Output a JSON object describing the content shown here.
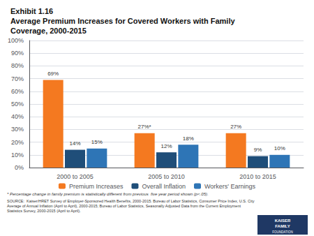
{
  "chart_data": {
    "type": "bar",
    "title": "Exhibit 1.16\nAverage Premium Increases for Covered Workers with Family\nCoverage, 2000-2015",
    "categories": [
      "2000 to 2005",
      "2005 to 2010",
      "2010 to 2015"
    ],
    "series": [
      {
        "name": "Premium Increases",
        "color": "#F47920",
        "values": [
          69,
          27,
          27
        ],
        "value_labels": [
          "69%",
          "27%*",
          "27%"
        ]
      },
      {
        "name": "Overall Inflation",
        "color": "#1F4E79",
        "values": [
          14,
          12,
          9
        ],
        "value_labels": [
          "14%",
          "12%",
          "9%"
        ]
      },
      {
        "name": "Workers' Earnings",
        "color": "#2E75B6",
        "values": [
          15,
          18,
          10
        ],
        "value_labels": [
          "15%",
          "18%",
          "10%"
        ]
      }
    ],
    "ylim": [
      0,
      100
    ],
    "yticks": [
      {
        "value": 0,
        "label": "0%"
      },
      {
        "value": 10,
        "label": "10%"
      },
      {
        "value": 20,
        "label": "20%"
      },
      {
        "value": 30,
        "label": "30%"
      },
      {
        "value": 40,
        "label": "40%"
      },
      {
        "value": 50,
        "label": "50%"
      },
      {
        "value": 60,
        "label": "60%"
      },
      {
        "value": 70,
        "label": "70%"
      },
      {
        "value": 80,
        "label": "80%"
      },
      {
        "value": 90,
        "label": "90%"
      },
      {
        "value": 100,
        "label": "100%"
      }
    ],
    "grid": true,
    "legend": "bottom",
    "data_labels": true,
    "annotations": [
      "* Percentage change in family premium is statistically different from previous  five year period shown (p<.05).",
      "SOURCE:  Kaiser/HRET Survey of Employer-Sponsored Health Benefits, 2000-2015. Bureau of Labor Statistics, Consumer Price Index, U.S. City\nAverage of Annual Inflation (April to April), 2000-2015; Bureau of Labor Statistics, Seasonally Adjusted Data from the Current Employment\nStatistics Survey, 2000-2015 (April to April).",
      "KAISER",
      "FAMILY",
      "FOUNDATION"
    ]
  }
}
